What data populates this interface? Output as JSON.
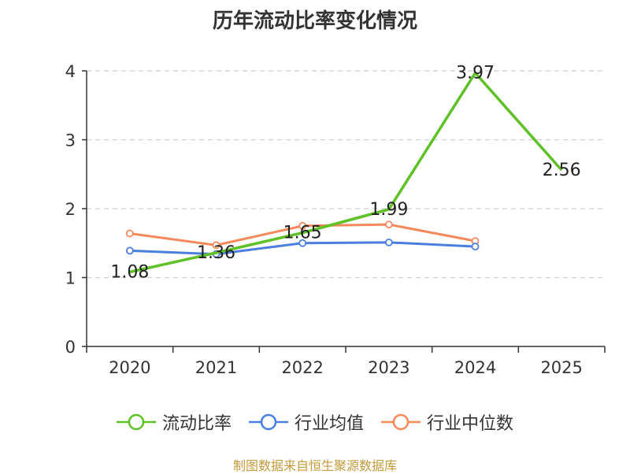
{
  "chart_data": {
    "type": "line",
    "title": "历年流动比率变化情况",
    "categories": [
      "2020",
      "2021",
      "2022",
      "2023",
      "2024",
      "2025"
    ],
    "yticks": [
      "0",
      "1",
      "2",
      "3",
      "4"
    ],
    "ylim": [
      0,
      4
    ],
    "grid": true,
    "legend_position": "bottom",
    "series": [
      {
        "name": "流动比率",
        "color": "#5ec126",
        "values": [
          1.08,
          1.36,
          1.65,
          1.99,
          3.97,
          2.56
        ],
        "labels": [
          "1.08",
          "1.36",
          "1.65",
          "1.99",
          "3.97",
          "2.56"
        ]
      },
      {
        "name": "行业均值",
        "color": "#4a7fe0",
        "values": [
          1.39,
          1.34,
          1.5,
          1.51,
          1.45,
          null
        ]
      },
      {
        "name": "行业中位数",
        "color": "#f5895b",
        "values": [
          1.64,
          1.47,
          1.75,
          1.77,
          1.53,
          null
        ]
      }
    ]
  },
  "footer": {
    "source": "制图数据来自恒生聚源数据库",
    "source_color": "#c59a3c"
  }
}
